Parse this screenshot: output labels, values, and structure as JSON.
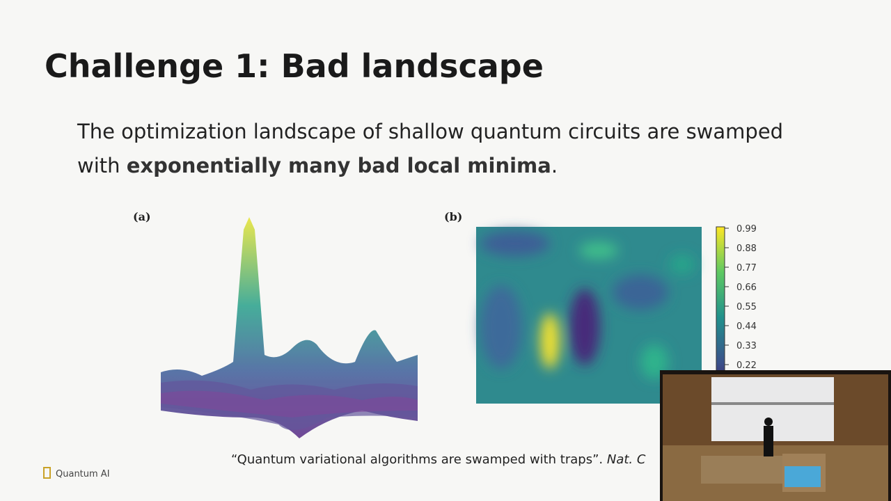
{
  "header": {
    "title": "Challenge 1: Bad landscape"
  },
  "body": {
    "line1": "The optimization landscape of shallow quantum circuits are swamped",
    "line2_start": "with",
    "emphasis": "exponentially many bad local minima",
    "line2_end": "."
  },
  "figure_a": {
    "label": "(a)"
  },
  "figure_b": {
    "label": "(b)",
    "colorbar": {
      "ticks": [
        0.99,
        0.88,
        0.77,
        0.66,
        0.55,
        0.44,
        0.33,
        0.22
      ]
    }
  },
  "citation": {
    "text": "“Quantum variational algorithms are swamped with traps”.",
    "journal": "Nat. C"
  },
  "footer": {
    "logo": "Quantum AI"
  }
}
